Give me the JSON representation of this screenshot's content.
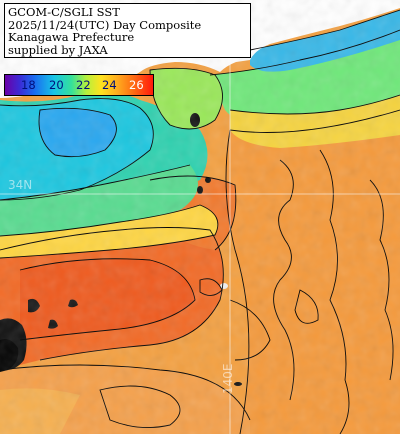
{
  "title_block": {
    "line1": "GCOM-C/SGLI SST",
    "line2": "2025/11/24(UTC) Day Composite",
    "line3": "Kanagawa Prefecture",
    "line4": "supplied by JAXA"
  },
  "legend": {
    "ticks": [
      "18",
      "20",
      "22",
      "24",
      "26"
    ],
    "colors": [
      "#6a00a8",
      "#1a6df0",
      "#18c4e6",
      "#35e09a",
      "#b6f03c",
      "#ffe21f",
      "#ffab1e",
      "#ff6a12",
      "#ff1a0d"
    ]
  },
  "grid_labels": {
    "lat": "34N",
    "lon": "140E"
  }
}
